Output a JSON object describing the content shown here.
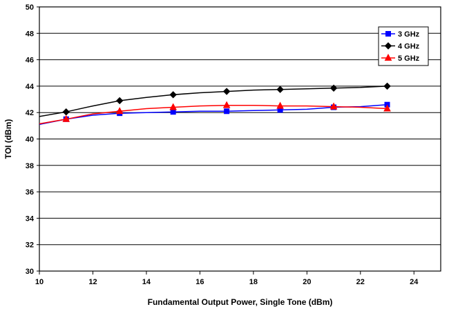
{
  "chart_data": {
    "type": "line",
    "title": "",
    "xlabel": "Fundamental Output Power, Single Tone (dBm)",
    "ylabel": "TOI (dBm)",
    "xlim": [
      10,
      25
    ],
    "ylim": [
      30,
      50
    ],
    "xticks": [
      "10",
      "12",
      "14",
      "16",
      "18",
      "20",
      "22",
      "24"
    ],
    "yticks": [
      "30",
      "32",
      "34",
      "36",
      "38",
      "40",
      "42",
      "44",
      "46",
      "48",
      "50"
    ],
    "grid": true,
    "legend_position": "top-right",
    "series": [
      {
        "name": "3 GHz",
        "color": "#0000ff",
        "marker": "square",
        "x": [
          10,
          11,
          12,
          13,
          14,
          15,
          16,
          17,
          18,
          19,
          20,
          21,
          22,
          23
        ],
        "y": [
          41.1,
          41.5,
          41.8,
          41.95,
          42.0,
          42.05,
          42.1,
          42.1,
          42.15,
          42.2,
          42.25,
          42.4,
          42.45,
          42.6
        ],
        "marker_x": [
          11,
          13,
          15,
          17,
          19,
          21,
          23
        ],
        "marker_y": [
          41.5,
          41.95,
          42.05,
          42.1,
          42.2,
          42.4,
          42.6
        ]
      },
      {
        "name": "4 GHz",
        "color": "#000000",
        "marker": "diamond",
        "x": [
          10,
          11,
          12,
          13,
          14,
          15,
          16,
          17,
          18,
          19,
          20,
          21,
          22,
          23
        ],
        "y": [
          41.7,
          42.05,
          42.5,
          42.9,
          43.15,
          43.35,
          43.5,
          43.6,
          43.7,
          43.75,
          43.8,
          43.85,
          43.9,
          44.0
        ],
        "marker_x": [
          11,
          13,
          15,
          17,
          19,
          21,
          23
        ],
        "marker_y": [
          42.05,
          42.9,
          43.35,
          43.6,
          43.75,
          43.85,
          44.0
        ]
      },
      {
        "name": "5 GHz",
        "color": "#ff0000",
        "marker": "triangle",
        "x": [
          10,
          11,
          12,
          13,
          14,
          15,
          16,
          17,
          18,
          19,
          20,
          21,
          22,
          23
        ],
        "y": [
          41.15,
          41.5,
          41.9,
          42.1,
          42.3,
          42.4,
          42.5,
          42.55,
          42.55,
          42.5,
          42.5,
          42.45,
          42.4,
          42.3
        ],
        "marker_x": [
          11,
          13,
          15,
          17,
          19,
          21,
          23
        ],
        "marker_y": [
          41.5,
          42.1,
          42.4,
          42.55,
          42.5,
          42.45,
          42.3
        ]
      }
    ]
  }
}
